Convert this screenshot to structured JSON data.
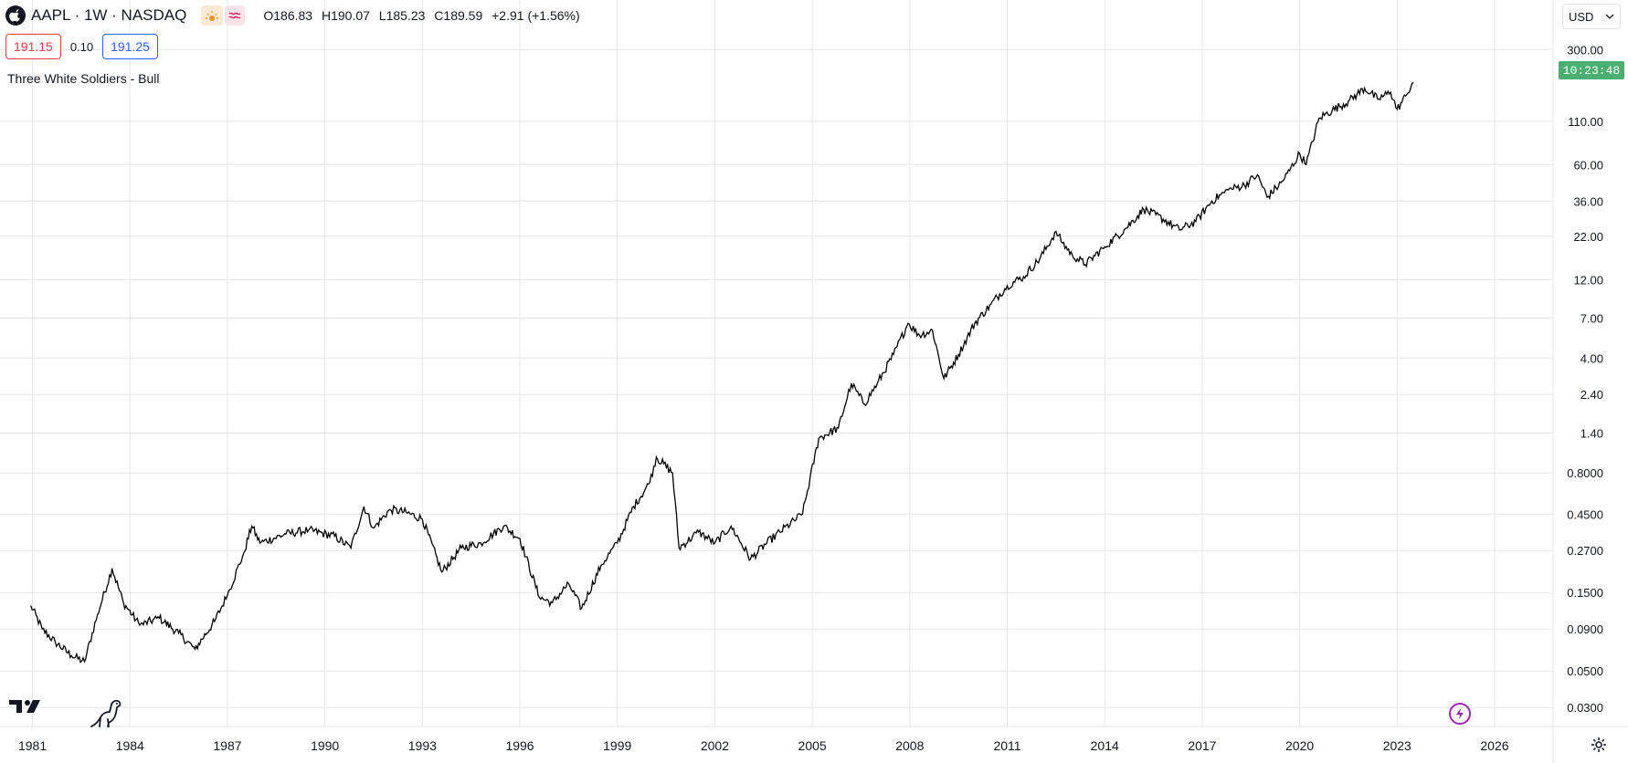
{
  "header": {
    "symbol": "AAPL · 1W · NASDAQ",
    "ohlc": {
      "open": "O186.83",
      "high": "H190.07",
      "low": "L185.23",
      "close": "C189.59",
      "change": "+2.91 (+1.56%)"
    },
    "icons": [
      "apple-logo-icon",
      "sun-icon",
      "wave-icon"
    ]
  },
  "quote": {
    "bid": "191.15",
    "spread": "0.10",
    "ask": "191.25"
  },
  "indicator_label": "Three White Soldiers - Bull",
  "currency": "USD",
  "countdown": "10:23:48",
  "colors": {
    "line": "#000000",
    "bid": "#f23645",
    "ask": "#2962ff",
    "countdown_bg": "#4caf72",
    "grid": "#e6e6e6"
  },
  "chart_data": {
    "type": "line",
    "scale": "log",
    "grid": true,
    "x_ticks": [
      "1981",
      "1984",
      "1987",
      "1990",
      "1993",
      "1996",
      "1999",
      "2002",
      "2005",
      "2008",
      "2011",
      "2014",
      "2017",
      "2020",
      "2023",
      "2026"
    ],
    "y_ticks": [
      "300.00",
      "110.00",
      "60.00",
      "36.00",
      "22.00",
      "12.00",
      "7.00",
      "4.00",
      "2.40",
      "1.40",
      "0.8000",
      "0.4500",
      "0.2700",
      "0.1500",
      "0.0900",
      "0.0500",
      "0.0300"
    ],
    "xlim": [
      1980,
      2027.8
    ],
    "ylim": [
      0.023,
      420
    ],
    "series": [
      {
        "x": [
          1980.95,
          1981.3,
          1981.7,
          1982.2,
          1982.6,
          1983.0,
          1983.45,
          1983.8,
          1984.3,
          1984.9,
          1985.5,
          1986.0,
          1986.6,
          1987.0,
          1987.5,
          1987.75,
          1988.0,
          1988.8,
          1989.5,
          1990.3,
          1990.8,
          1991.2,
          1991.5,
          1992.0,
          1992.5,
          1993.0,
          1993.6,
          1994.2,
          1994.8,
          1995.5,
          1996.0,
          1996.6,
          1997.0,
          1997.5,
          1997.9,
          1998.5,
          1999.0,
          1999.5,
          2000.0,
          2000.2,
          2000.7,
          2000.9,
          2001.5,
          2002.0,
          2002.5,
          2003.1,
          2003.6,
          2004.0,
          2004.7,
          2005.2,
          2005.8,
          2006.2,
          2006.6,
          2007.0,
          2007.5,
          2007.95,
          2008.3,
          2008.7,
          2009.05,
          2009.5,
          2010.0,
          2010.5,
          2011.0,
          2011.5,
          2012.0,
          2012.5,
          2012.7,
          2013.0,
          2013.4,
          2014.0,
          2014.6,
          2015.2,
          2015.8,
          2016.3,
          2016.8,
          2017.3,
          2017.8,
          2018.3,
          2018.7,
          2019.0,
          2019.5,
          2020.0,
          2020.2,
          2020.6,
          2021.0,
          2021.5,
          2022.0,
          2022.4,
          2022.8,
          2023.0,
          2023.3,
          2023.5
        ],
        "y": [
          0.125,
          0.09,
          0.075,
          0.062,
          0.057,
          0.11,
          0.21,
          0.13,
          0.095,
          0.105,
          0.085,
          0.068,
          0.1,
          0.145,
          0.26,
          0.38,
          0.3,
          0.34,
          0.36,
          0.33,
          0.28,
          0.5,
          0.37,
          0.48,
          0.46,
          0.42,
          0.2,
          0.28,
          0.3,
          0.38,
          0.32,
          0.14,
          0.13,
          0.17,
          0.12,
          0.22,
          0.3,
          0.5,
          0.7,
          1.0,
          0.8,
          0.28,
          0.35,
          0.3,
          0.38,
          0.24,
          0.3,
          0.35,
          0.45,
          1.3,
          1.5,
          2.8,
          2.1,
          2.8,
          4.2,
          6.5,
          5.5,
          5.9,
          3.0,
          4.2,
          6.5,
          8.5,
          11.0,
          12.5,
          16.0,
          23.5,
          20.0,
          17.0,
          14.8,
          19.0,
          24.0,
          32.0,
          28.0,
          24.0,
          27.0,
          36.0,
          42.0,
          45.0,
          52.0,
          38.0,
          48.0,
          70.0,
          60.0,
          115.0,
          128.0,
          145.0,
          175.0,
          150.0,
          165.0,
          130.0,
          160.0,
          189.59
        ]
      }
    ]
  }
}
